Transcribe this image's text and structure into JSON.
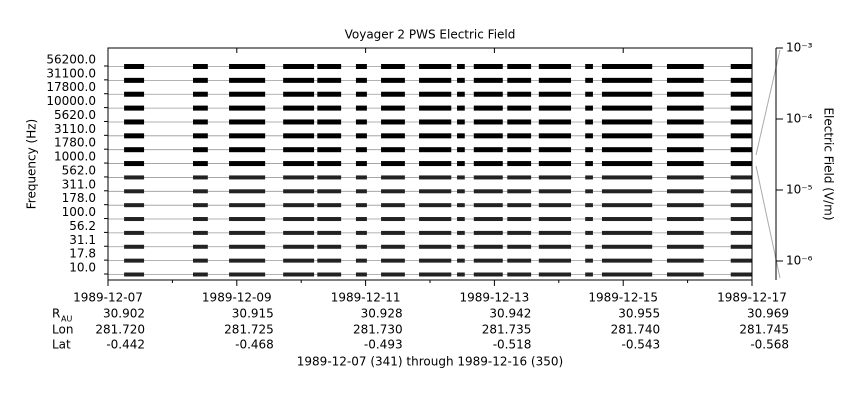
{
  "chart_data": {
    "type": "channel-coverage",
    "title": "Voyager 2 PWS Electric Field",
    "ylabel": "Frequency (Hz)",
    "channels": [
      "10.0",
      "17.8",
      "31.1",
      "56.2",
      "100.0",
      "178.0",
      "311.0",
      "562.0",
      "1000.0",
      "1780.0",
      "3110.0",
      "5620.0",
      "10000.0",
      "17800.0",
      "31100.0",
      "56200.0"
    ],
    "xlim": [
      0,
      10
    ],
    "xticks": [
      {
        "value": 0,
        "label": "1989-12-07"
      },
      {
        "value": 2,
        "label": "1989-12-09"
      },
      {
        "value": 4,
        "label": "1989-12-11"
      },
      {
        "value": 6,
        "label": "1989-12-13"
      },
      {
        "value": 8,
        "label": "1989-12-15"
      },
      {
        "value": 10,
        "label": "1989-12-17"
      }
    ],
    "segments": [
      {
        "start": 0.25,
        "end": 0.56
      },
      {
        "start": 1.32,
        "end": 1.55
      },
      {
        "start": 1.88,
        "end": 2.44
      },
      {
        "start": 2.72,
        "end": 3.2
      },
      {
        "start": 3.25,
        "end": 3.62
      },
      {
        "start": 3.85,
        "end": 4.02
      },
      {
        "start": 4.24,
        "end": 4.61
      },
      {
        "start": 4.83,
        "end": 5.33
      },
      {
        "start": 5.42,
        "end": 5.54
      },
      {
        "start": 5.68,
        "end": 6.13
      },
      {
        "start": 6.2,
        "end": 6.57
      },
      {
        "start": 6.69,
        "end": 7.19
      },
      {
        "start": 7.41,
        "end": 7.53
      },
      {
        "start": 7.67,
        "end": 8.45
      },
      {
        "start": 8.68,
        "end": 9.25
      },
      {
        "start": 9.67,
        "end": 10.0
      }
    ],
    "colorbar": {
      "label": "Electric Field (V/m)",
      "log": true,
      "lim": [
        5.4e-07,
        0.001
      ],
      "ticks": [
        {
          "value": 0.001,
          "label": "10⁻³"
        },
        {
          "value": 0.0001,
          "label": "10⁻⁴"
        },
        {
          "value": 1e-05,
          "label": "10⁻⁵"
        },
        {
          "value": 1e-06,
          "label": "10⁻⁶"
        }
      ]
    },
    "ephemeris": [
      {
        "label": "R",
        "sub": "AU",
        "values": [
          "30.902",
          "30.915",
          "30.928",
          "30.942",
          "30.955",
          "30.969"
        ]
      },
      {
        "label": "Lon",
        "values": [
          "281.720",
          "281.725",
          "281.730",
          "281.735",
          "281.740",
          "281.745"
        ]
      },
      {
        "label": "Lat",
        "values": [
          "-0.442",
          "-0.468",
          "-0.493",
          "-0.518",
          "-0.543",
          "-0.568"
        ]
      }
    ],
    "footer": "1989-12-07 (341) through 1989-12-16 (350)"
  }
}
